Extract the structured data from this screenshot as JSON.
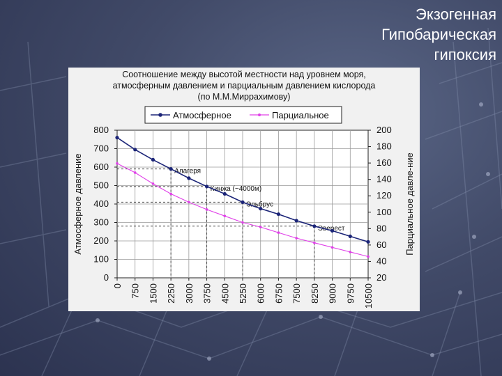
{
  "slide": {
    "title_lines": [
      "Экзогенная",
      "Гипобарическая",
      "гипоксия"
    ]
  },
  "colors": {
    "series_atmospheric": "#1c2578",
    "series_partial": "#e040e8",
    "guide_line": "#444444"
  },
  "chart_data": {
    "type": "line",
    "title_lines": [
      "Соотношение между высотой местности над уровнем моря,",
      "атмосферным давлением и парциальным давлением кислорода",
      "(по М.М.Миррахимову)"
    ],
    "x": [
      0,
      750,
      1500,
      2250,
      3000,
      3750,
      4500,
      5250,
      6000,
      6750,
      7500,
      8250,
      9000,
      9750,
      10500
    ],
    "x_tick_labels": [
      "0",
      "750",
      "1500",
      "2250",
      "3000",
      "3750",
      "4500",
      "5250",
      "6000",
      "6750",
      "7500",
      "8250",
      "9000",
      "9750",
      "10500"
    ],
    "xlim": [
      0,
      10500
    ],
    "ylabel": "Атмосферное давление",
    "ylim": [
      0,
      800
    ],
    "y_ticks": [
      0,
      100,
      200,
      300,
      400,
      500,
      600,
      700,
      800
    ],
    "y2label": "Парциальное давле-ние",
    "y2lim": [
      20,
      200
    ],
    "y2_ticks": [
      20,
      40,
      60,
      80,
      100,
      120,
      140,
      160,
      180,
      200
    ],
    "grid": true,
    "legend_position": "top",
    "series": [
      {
        "name": "Атмосферное",
        "axis": "left",
        "marker": "circle",
        "values": [
          760,
          695,
          640,
          590,
          540,
          495,
          455,
          410,
          375,
          345,
          310,
          280,
          255,
          225,
          195
        ]
      },
      {
        "name": "Парциальное",
        "axis": "left",
        "marker": "dot",
        "values": [
          620,
          570,
          510,
          455,
          410,
          370,
          335,
          300,
          275,
          245,
          215,
          190,
          165,
          140,
          115
        ]
      }
    ],
    "annotations": [
      {
        "label": "Алагеря",
        "x": 2250,
        "y": 590
      },
      {
        "label": "Кинжа (~4000м)",
        "x": 3750,
        "y": 495
      },
      {
        "label": "Эльбрус",
        "x": 5250,
        "y": 410
      },
      {
        "label": "Эверест",
        "x": 8250,
        "y": 280
      }
    ]
  }
}
